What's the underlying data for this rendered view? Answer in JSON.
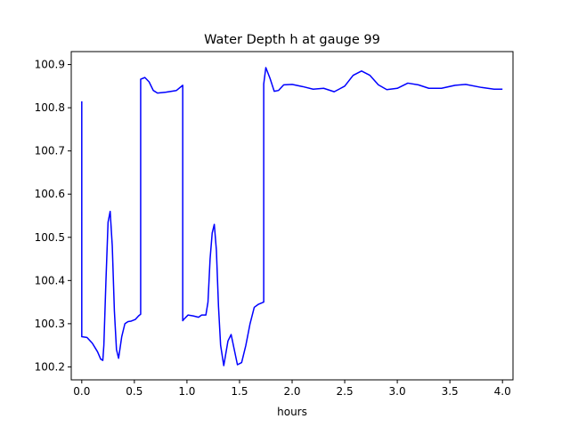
{
  "chart_data": {
    "type": "line",
    "title": "Water Depth h at gauge 99",
    "xlabel": "hours",
    "ylabel": "",
    "xlim": [
      -0.1,
      4.1
    ],
    "ylim": [
      100.17,
      100.93
    ],
    "xticks": [
      0.0,
      0.5,
      1.0,
      1.5,
      2.0,
      2.5,
      3.0,
      3.5,
      4.0
    ],
    "xtick_labels": [
      "0.0",
      "0.5",
      "1.0",
      "1.5",
      "2.0",
      "2.5",
      "3.0",
      "3.5",
      "4.0"
    ],
    "yticks": [
      100.2,
      100.3,
      100.4,
      100.5,
      100.6,
      100.7,
      100.8,
      100.9
    ],
    "ytick_labels": [
      "100.2",
      "100.3",
      "100.4",
      "100.5",
      "100.6",
      "100.7",
      "100.8",
      "100.9"
    ],
    "grid": false,
    "series": [
      {
        "color": "#0000ff",
        "x": [
          0.0,
          0.0,
          0.001,
          0.05,
          0.1,
          0.15,
          0.18,
          0.2,
          0.21,
          0.23,
          0.25,
          0.27,
          0.29,
          0.31,
          0.33,
          0.35,
          0.38,
          0.41,
          0.44,
          0.47,
          0.51,
          0.54,
          0.56,
          0.56,
          0.6,
          0.64,
          0.68,
          0.72,
          0.8,
          0.9,
          0.96,
          0.96,
          0.97,
          1.01,
          1.06,
          1.11,
          1.14,
          1.18,
          1.2,
          1.22,
          1.24,
          1.26,
          1.28,
          1.3,
          1.32,
          1.35,
          1.39,
          1.42,
          1.45,
          1.48,
          1.52,
          1.56,
          1.6,
          1.64,
          1.68,
          1.71,
          1.73,
          1.73,
          1.75,
          1.79,
          1.83,
          1.87,
          1.92,
          2.0,
          2.1,
          2.2,
          2.3,
          2.4,
          2.5,
          2.58,
          2.66,
          2.74,
          2.82,
          2.9,
          3.0,
          3.1,
          3.2,
          3.3,
          3.42,
          3.55,
          3.65,
          3.8,
          3.92,
          4.0
        ],
        "y": [
          100.815,
          100.27,
          100.27,
          100.268,
          100.255,
          100.235,
          100.218,
          100.215,
          100.25,
          100.4,
          100.535,
          100.56,
          100.48,
          100.33,
          100.24,
          100.22,
          100.27,
          100.3,
          100.305,
          100.306,
          100.31,
          100.318,
          100.322,
          100.866,
          100.87,
          100.86,
          100.84,
          100.834,
          100.836,
          100.84,
          100.852,
          100.307,
          100.31,
          100.32,
          100.318,
          100.315,
          100.32,
          100.32,
          100.35,
          100.45,
          100.51,
          100.53,
          100.47,
          100.34,
          100.25,
          100.203,
          100.26,
          100.275,
          100.24,
          100.205,
          100.21,
          100.25,
          100.3,
          100.338,
          100.345,
          100.348,
          100.35,
          100.855,
          100.893,
          100.868,
          100.838,
          100.84,
          100.853,
          100.854,
          100.849,
          100.843,
          100.845,
          100.837,
          100.85,
          100.875,
          100.885,
          100.875,
          100.853,
          100.842,
          100.845,
          100.857,
          100.853,
          100.845,
          100.845,
          100.852,
          100.854,
          100.847,
          100.843,
          100.843
        ]
      }
    ]
  }
}
